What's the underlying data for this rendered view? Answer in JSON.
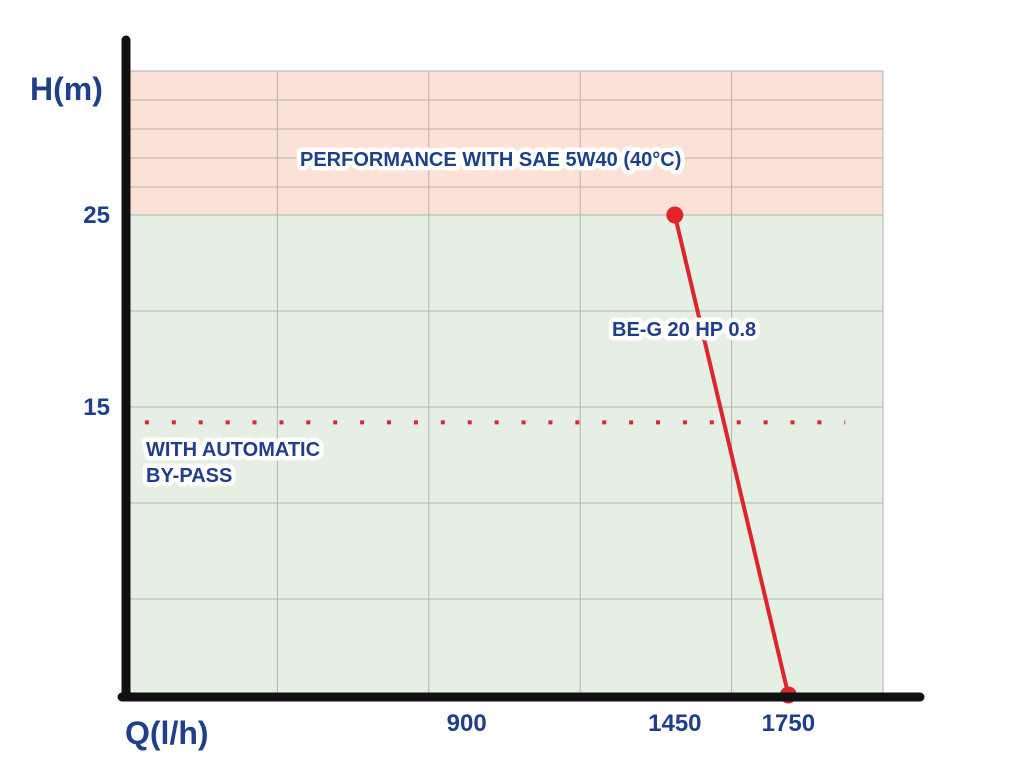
{
  "chart_data": {
    "type": "line",
    "xlabel": "Q(l/h)",
    "ylabel": "H(m)",
    "x_ticks": [
      900,
      1450,
      1750
    ],
    "y_ticks": [
      15,
      25
    ],
    "xlim": [
      0,
      2000
    ],
    "ylim": [
      0,
      32.5
    ],
    "grid": true,
    "series": [
      {
        "name": "BE-G 20 HP 0.8",
        "color": "#e0242b",
        "style": "solid",
        "points": [
          {
            "x": 1450,
            "y": 25
          },
          {
            "x": 1750,
            "y": 0
          }
        ]
      },
      {
        "name": "",
        "color": "#e0242b",
        "style": "dotted",
        "points": [
          {
            "x": 50,
            "y": 14.2
          },
          {
            "x": 1900,
            "y": 14.2
          }
        ]
      }
    ],
    "regions": [
      {
        "y_from": 25,
        "y_to": 32.5,
        "color": "#fbe1d6"
      },
      {
        "y_from": 0,
        "y_to": 25,
        "color": "#e6efe4"
      }
    ],
    "annotations": {
      "performance": "PERFORMANCE WITH SAE 5W40 (40°C)",
      "curve_label": "BE-G 20 HP 0.8",
      "bypass_line1": "WITH AUTOMATIC",
      "bypass_line2": "BY-PASS"
    },
    "colors": {
      "text": "#1f3f8a",
      "axis": "#111111",
      "grid": "#b3b3b3"
    }
  }
}
